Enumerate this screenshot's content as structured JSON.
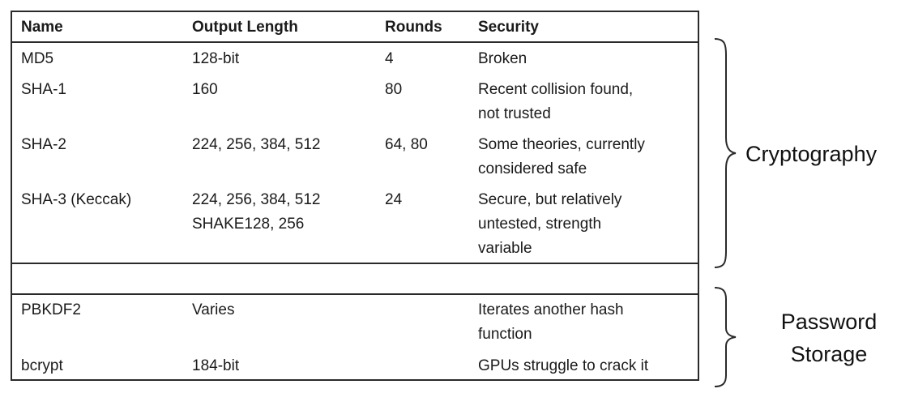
{
  "table": {
    "headers": {
      "name": "Name",
      "output_length": "Output Length",
      "rounds": "Rounds",
      "security": "Security"
    },
    "rows": [
      {
        "name": "MD5",
        "output_length": [
          "128-bit"
        ],
        "rounds": "4",
        "security": [
          "Broken"
        ]
      },
      {
        "name": "SHA-1",
        "output_length": [
          "160"
        ],
        "rounds": "80",
        "security": [
          "Recent collision found,",
          "not trusted"
        ]
      },
      {
        "name": "SHA-2",
        "output_length": [
          "224, 256, 384, 512"
        ],
        "rounds": "64, 80",
        "security": [
          "Some theories, currently",
          "considered safe"
        ]
      },
      {
        "name": "SHA-3 (Keccak)",
        "output_length": [
          "224, 256, 384, 512",
          "SHAKE128, 256"
        ],
        "rounds": "24",
        "security": [
          "Secure, but relatively",
          "untested, strength",
          "variable"
        ]
      },
      {
        "name": "PBKDF2",
        "output_length": [
          "Varies"
        ],
        "rounds": "",
        "security": [
          "Iterates another hash",
          "function"
        ]
      },
      {
        "name": "bcrypt",
        "output_length": [
          "184-bit"
        ],
        "rounds": "",
        "security": [
          "GPUs struggle to crack it"
        ]
      }
    ]
  },
  "groups": {
    "cryptography": {
      "label": "Cryptography"
    },
    "password_storage": {
      "label_line1": "Password",
      "label_line2": "Storage"
    }
  }
}
